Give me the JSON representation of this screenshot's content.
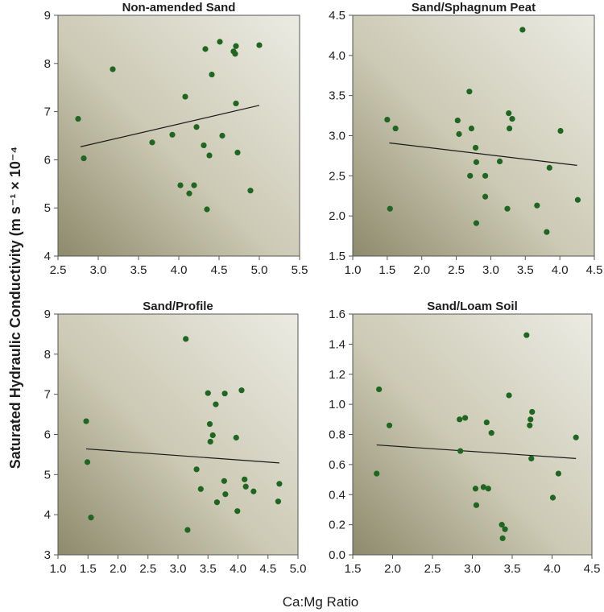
{
  "figure": {
    "ylabel": "Saturated Hydraulic Conductivity (m s⁻¹ × 10⁻⁴",
    "xlabel": "Ca:Mg Ratio",
    "colors": {
      "point": "#1f6620",
      "trend": "#1a1a1a",
      "bg_light": "#ebebe3",
      "bg_dark": "#8e8a6c",
      "frame": "#555555"
    }
  },
  "chart_data": [
    {
      "type": "scatter",
      "title": "Non-amended Sand",
      "xlim": [
        2.5,
        5.5
      ],
      "ylim": [
        4,
        9
      ],
      "xticks": [
        "2.5",
        "3.0",
        "3.5",
        "4.0",
        "4.5",
        "5.0",
        "5.5"
      ],
      "yticks": [
        "4",
        "5",
        "6",
        "7",
        "8",
        "9"
      ],
      "points": [
        [
          2.75,
          6.85
        ],
        [
          2.82,
          6.03
        ],
        [
          3.18,
          7.88
        ],
        [
          3.67,
          6.36
        ],
        [
          3.92,
          6.52
        ],
        [
          4.02,
          5.47
        ],
        [
          4.08,
          7.31
        ],
        [
          4.13,
          5.3
        ],
        [
          4.19,
          5.47
        ],
        [
          4.22,
          6.68
        ],
        [
          4.31,
          6.3
        ],
        [
          4.33,
          8.3
        ],
        [
          4.35,
          4.97
        ],
        [
          4.38,
          6.09
        ],
        [
          4.41,
          7.77
        ],
        [
          4.51,
          8.45
        ],
        [
          4.54,
          6.5
        ],
        [
          4.68,
          8.25
        ],
        [
          4.7,
          8.2
        ],
        [
          4.71,
          8.36
        ],
        [
          4.71,
          7.17
        ],
        [
          4.73,
          6.15
        ],
        [
          4.89,
          5.36
        ],
        [
          5.0,
          8.38
        ]
      ],
      "trendline": [
        [
          2.78,
          6.27
        ],
        [
          5.0,
          7.13
        ]
      ]
    },
    {
      "type": "scatter",
      "title": "Sand/Sphagnum Peat",
      "xlim": [
        1.0,
        4.5
      ],
      "ylim": [
        1.5,
        4.5
      ],
      "xticks": [
        "1.0",
        "1.5",
        "2.0",
        "2.5",
        "3.0",
        "3.5",
        "4.0",
        "4.5"
      ],
      "yticks": [
        "1.5",
        "2.0",
        "2.5",
        "3.0",
        "3.5",
        "4.0",
        "4.5"
      ],
      "points": [
        [
          1.5,
          3.2
        ],
        [
          1.54,
          2.09
        ],
        [
          1.62,
          3.09
        ],
        [
          2.52,
          3.19
        ],
        [
          2.54,
          3.02
        ],
        [
          2.69,
          3.55
        ],
        [
          2.7,
          2.5
        ],
        [
          2.72,
          3.09
        ],
        [
          2.78,
          2.85
        ],
        [
          2.79,
          2.67
        ],
        [
          2.79,
          1.91
        ],
        [
          2.92,
          2.5
        ],
        [
          2.92,
          2.24
        ],
        [
          3.13,
          2.68
        ],
        [
          3.24,
          2.09
        ],
        [
          3.26,
          3.28
        ],
        [
          3.27,
          3.09
        ],
        [
          3.31,
          3.21
        ],
        [
          3.46,
          4.32
        ],
        [
          3.67,
          2.13
        ],
        [
          3.81,
          1.8
        ],
        [
          3.85,
          2.6
        ],
        [
          4.01,
          3.06
        ],
        [
          4.26,
          2.2
        ]
      ],
      "trendline": [
        [
          1.53,
          2.91
        ],
        [
          4.25,
          2.63
        ]
      ]
    },
    {
      "type": "scatter",
      "title": "Sand/Profile",
      "xlim": [
        1.0,
        5.0
      ],
      "ylim": [
        3,
        9
      ],
      "xticks": [
        "1.0",
        "1.5",
        "2.0",
        "2.5",
        "3.0",
        "3.5",
        "4.0",
        "4.5",
        "5.0"
      ],
      "yticks": [
        "3",
        "4",
        "5",
        "6",
        "7",
        "8",
        "9"
      ],
      "points": [
        [
          1.47,
          6.33
        ],
        [
          1.49,
          5.31
        ],
        [
          1.55,
          3.93
        ],
        [
          3.13,
          8.38
        ],
        [
          3.16,
          3.62
        ],
        [
          3.31,
          5.13
        ],
        [
          3.38,
          4.64
        ],
        [
          3.5,
          7.03
        ],
        [
          3.53,
          6.26
        ],
        [
          3.54,
          5.82
        ],
        [
          3.58,
          5.98
        ],
        [
          3.63,
          6.75
        ],
        [
          3.65,
          4.31
        ],
        [
          3.77,
          4.84
        ],
        [
          3.78,
          7.02
        ],
        [
          3.79,
          4.51
        ],
        [
          3.97,
          5.92
        ],
        [
          3.99,
          4.09
        ],
        [
          4.06,
          7.1
        ],
        [
          4.11,
          4.88
        ],
        [
          4.13,
          4.7
        ],
        [
          4.26,
          4.58
        ],
        [
          4.67,
          4.33
        ],
        [
          4.69,
          4.77
        ]
      ],
      "trendline": [
        [
          1.47,
          5.64
        ],
        [
          4.69,
          5.29
        ]
      ]
    },
    {
      "type": "scatter",
      "title": "Sand/Loam Soil",
      "xlim": [
        1.5,
        4.5
      ],
      "ylim": [
        0.0,
        1.6
      ],
      "xticks": [
        "1.5",
        "2.0",
        "2.5",
        "3.0",
        "3.5",
        "4.0",
        "4.5"
      ],
      "yticks": [
        "0.0",
        "0.2",
        "0.4",
        "0.6",
        "0.8",
        "1.0",
        "1.2",
        "1.4",
        "1.6"
      ],
      "points": [
        [
          1.8,
          0.54
        ],
        [
          1.83,
          1.1
        ],
        [
          1.96,
          0.86
        ],
        [
          2.84,
          0.9
        ],
        [
          2.85,
          0.69
        ],
        [
          2.91,
          0.91
        ],
        [
          3.04,
          0.44
        ],
        [
          3.05,
          0.33
        ],
        [
          3.14,
          0.45
        ],
        [
          3.18,
          0.88
        ],
        [
          3.2,
          0.44
        ],
        [
          3.24,
          0.81
        ],
        [
          3.37,
          0.2
        ],
        [
          3.38,
          0.11
        ],
        [
          3.41,
          0.17
        ],
        [
          3.46,
          1.06
        ],
        [
          3.68,
          1.46
        ],
        [
          3.72,
          0.86
        ],
        [
          3.73,
          0.9
        ],
        [
          3.74,
          0.64
        ],
        [
          3.75,
          0.95
        ],
        [
          4.01,
          0.38
        ],
        [
          4.08,
          0.54
        ],
        [
          4.3,
          0.78
        ]
      ],
      "trendline": [
        [
          1.8,
          0.73
        ],
        [
          4.3,
          0.64
        ]
      ]
    }
  ]
}
